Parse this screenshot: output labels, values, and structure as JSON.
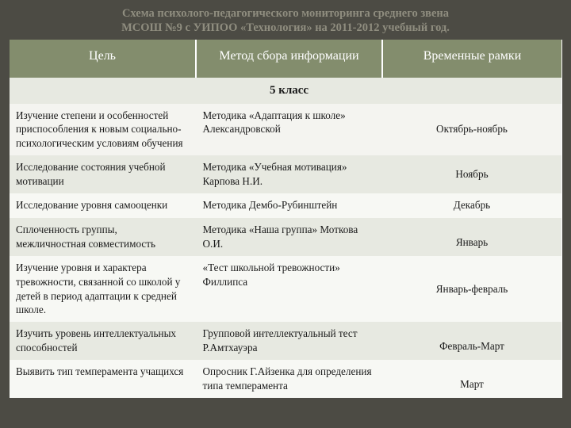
{
  "title_line1": "Схема психолого-педагогического мониторинга среднего звена",
  "title_line2": "МСОШ №9 с УИПОО «Технология» на 2011-2012 учебный год.",
  "headers": {
    "col1": "Цель",
    "col2": "Метод сбора информации",
    "col3": "Временные рамки"
  },
  "section_label": "5 класс",
  "rows": [
    {
      "band": "a",
      "goal": "Изучение степени и особенностей приспособления к новым социально-психологическим условиям обучения",
      "method": "Методика «Адаптация к школе» Александровской",
      "time": "Октябрь-ноябрь",
      "time_valign": "middle"
    },
    {
      "band": "b",
      "goal": "Исследование состояния учебной мотивации",
      "method": "Методика «Учебная мотивация» Карпова Н.И.",
      "time": "Ноябрь",
      "time_valign": "middle"
    },
    {
      "band": "c",
      "goal": "Исследование уровня самооценки",
      "method": "Методика Дембо-Рубинштейн",
      "time": "Декабрь",
      "time_valign": "bottom"
    },
    {
      "band": "b",
      "goal": "Сплоченность группы, межличностная совместимость",
      "method": "Методика «Наша группа» Моткова О.И.",
      "time": "Январь",
      "time_valign": "bottom"
    },
    {
      "band": "c",
      "goal": "Изучение уровня и характера тревожности, связанной со школой у детей в период адаптации к средней школе.",
      "method": "«Тест школьной тревожности» Филлипса",
      "time": "Январь-февраль",
      "time_valign": "middle"
    },
    {
      "band": "b",
      "goal": "Изучить уровень интеллектуальных способностей",
      "method": "Групповой интеллектуальный тест Р.Амтхауэра",
      "time": "Февраль-Март",
      "time_valign": "bottom"
    },
    {
      "band": "c",
      "goal": "Выявить тип темперамента учащихся",
      "method": "Опросник Г.Айзенка для определения типа темперамента",
      "time": "Март",
      "time_valign": "bottom"
    }
  ],
  "colors": {
    "page_bg": "#4c4b44",
    "title_color": "#8f8d7f",
    "header_bg": "#838d6d",
    "header_fg": "#ffffff",
    "band_a": "#f4f4f0",
    "band_b": "#e7e9e1",
    "band_c": "#f7f8f4",
    "text": "#1a1a1a"
  }
}
